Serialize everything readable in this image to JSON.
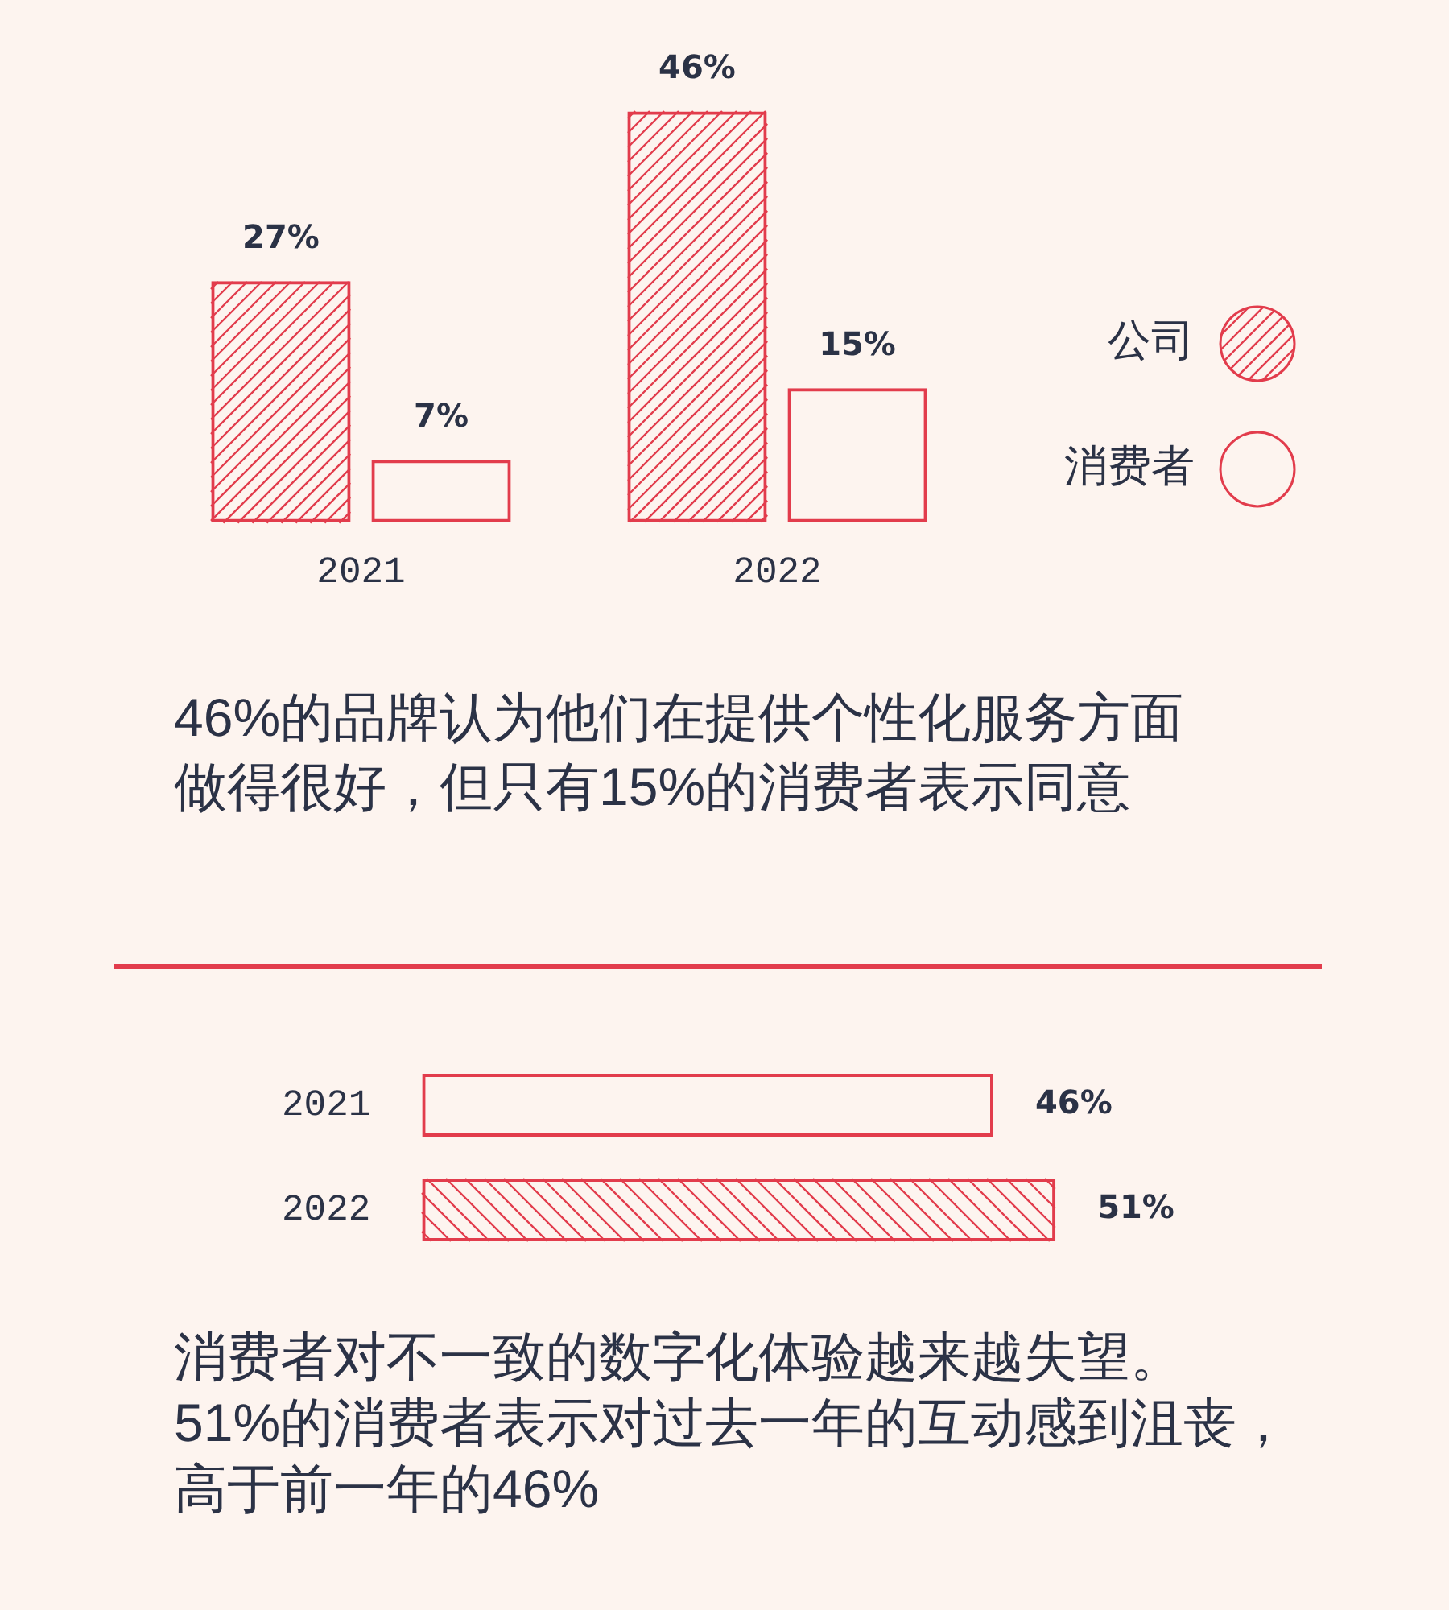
{
  "chart_data": [
    {
      "type": "bar",
      "categories": [
        "2021",
        "2022"
      ],
      "series": [
        {
          "name": "公司",
          "color": "#e23c4c",
          "values": [
            27,
            46
          ],
          "value_labels": [
            "27%",
            "46%"
          ]
        },
        {
          "name": "消费者",
          "color": "#e23c4c",
          "values": [
            7,
            15
          ],
          "value_labels": [
            "7%",
            "15%"
          ]
        }
      ],
      "legend": "right",
      "tick_labels": "x",
      "annotations": [
        "46%的品牌认为他们在提供个性化服务方面做得很好，但只有15%的消费者表示同意"
      ]
    },
    {
      "type": "bar",
      "orientation": "horizontal",
      "categories": [
        "2021",
        "2022"
      ],
      "values": [
        46,
        51
      ],
      "colors": [
        "#e23c4c",
        "#e23c4c"
      ],
      "value_labels": [
        "46%",
        "51%"
      ],
      "tick_labels": "y",
      "annotations": [
        "消费者对不一致的数字化体验越来越失望。",
        "51%的消费者表示对过去一年的互动感到沮丧，高于前一年的46%"
      ]
    }
  ]
}
